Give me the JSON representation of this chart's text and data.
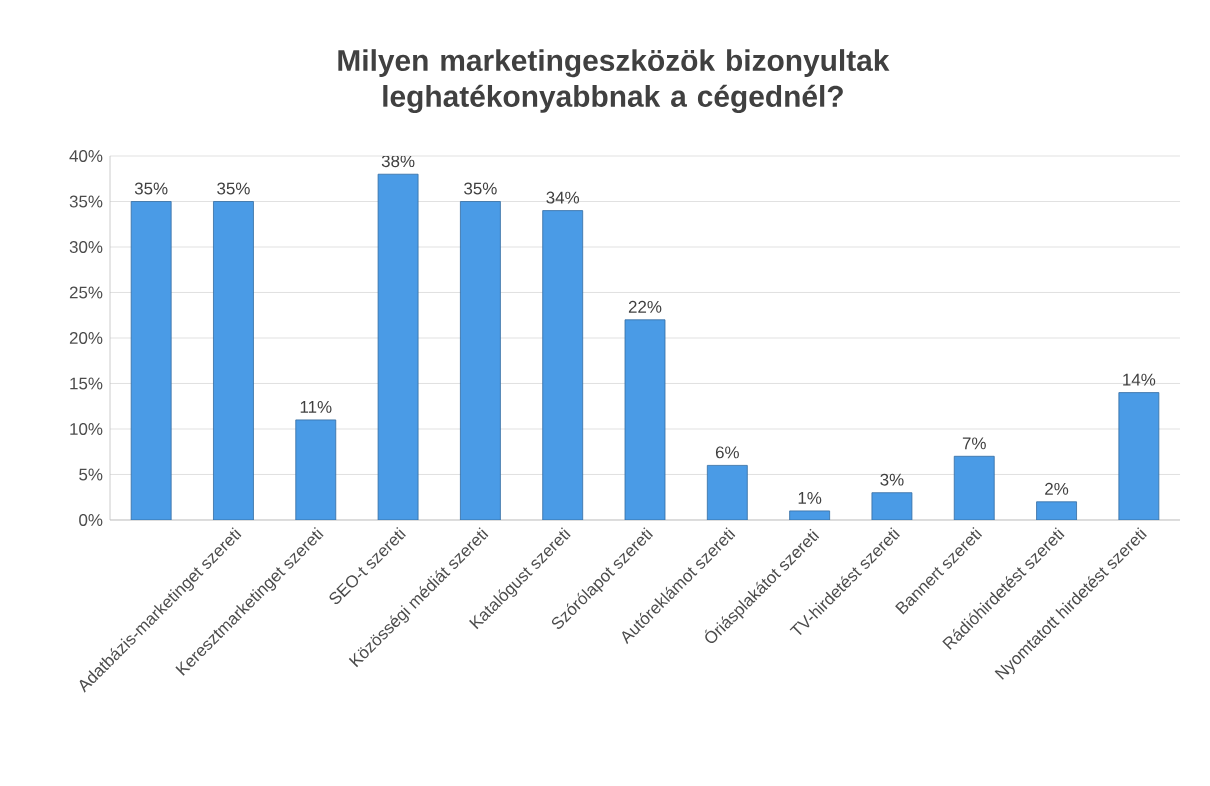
{
  "chart_data": {
    "type": "bar",
    "title": "Milyen marketingeszközök  bizonyultak leghatékonyabbnak  a cégednél?",
    "categories": [
      null,
      "Adatbázis-marketinget szereti",
      "Keresztmarketinget szereti",
      "SEO-t szereti",
      "Közösségi médiát szereti",
      "Katalógust szereti",
      "Szórólapot szereti",
      "Autóreklámot szereti",
      "Óriásplakátot szereti",
      "TV-hirdetést szereti",
      "Bannert szereti",
      "Rádióhirdetést szereti",
      "Nyomtatott hirdetést szereti"
    ],
    "values": [
      35,
      35,
      11,
      38,
      35,
      34,
      22,
      6,
      1,
      3,
      7,
      2,
      14
    ],
    "value_labels": [
      "35%",
      "35%",
      "11%",
      "38%",
      "35%",
      "34%",
      "22%",
      "6%",
      "1%",
      "3%",
      "7%",
      "2%",
      "14%"
    ],
    "color": "#4a9be6",
    "ylim": [
      0,
      40
    ],
    "yticks": [
      {
        "value": 0,
        "label": "0%"
      },
      {
        "value": 5,
        "label": "5%"
      },
      {
        "value": 10,
        "label": "10%"
      },
      {
        "value": 15,
        "label": "15%"
      },
      {
        "value": 20,
        "label": "20%"
      },
      {
        "value": 25,
        "label": "25%"
      },
      {
        "value": 30,
        "label": "30%"
      },
      {
        "value": 35,
        "label": "35%"
      },
      {
        "value": 40,
        "label": "40%"
      }
    ],
    "grid": "y"
  }
}
